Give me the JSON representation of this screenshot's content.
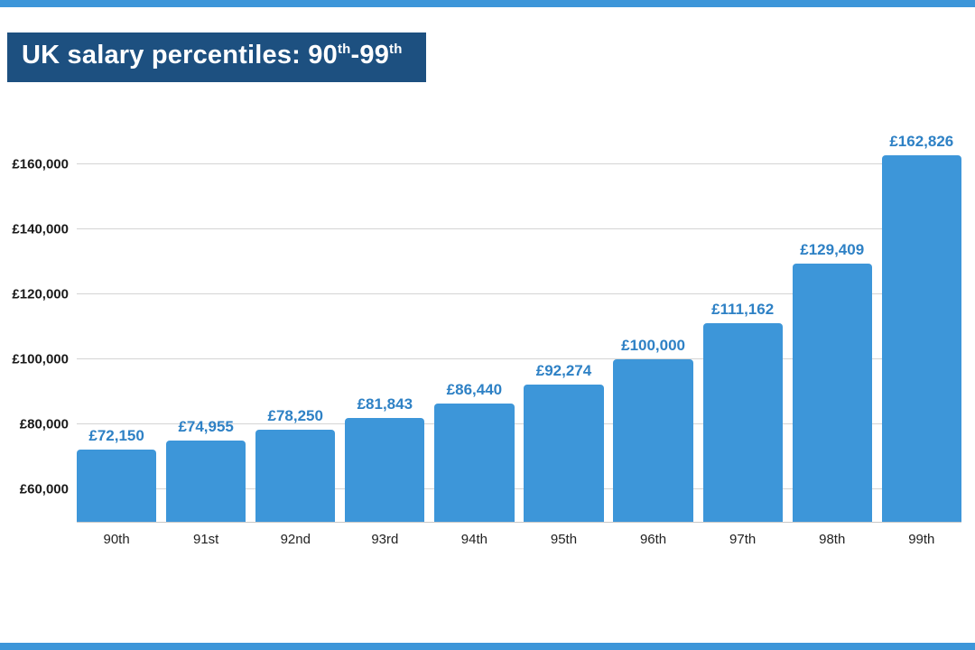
{
  "page": {
    "background": "#ffffff",
    "top_strip_color": "#3d96d9",
    "bottom_strip_color": "#3d96d9"
  },
  "title": {
    "text": "UK salary percentiles: 90th-99th",
    "prefix": "UK salary percentiles: 90",
    "sup1": "th",
    "mid": "-99",
    "sup2": "th",
    "background": "#1d5080",
    "color": "#ffffff"
  },
  "chart_data": {
    "type": "bar",
    "title": "UK salary percentiles: 90th-99th",
    "categories": [
      "90th",
      "91st",
      "92nd",
      "93rd",
      "94th",
      "95th",
      "96th",
      "97th",
      "98th",
      "99th"
    ],
    "values": [
      72150,
      74955,
      78250,
      81843,
      86440,
      92274,
      100000,
      111162,
      129409,
      162826
    ],
    "value_labels": [
      "£72,150",
      "£74,955",
      "£78,250",
      "£81,843",
      "£86,440",
      "£92,274",
      "£100,000",
      "£111,162",
      "£129,409",
      "£162,826"
    ],
    "xlabel": "",
    "ylabel": "",
    "ylim": [
      50000,
      170000
    ],
    "yticks": [
      60000,
      80000,
      100000,
      120000,
      140000,
      160000
    ],
    "ytick_labels": [
      "£60,000",
      "£80,000",
      "£100,000",
      "£120,000",
      "£140,000",
      "£160,000"
    ],
    "grid": true,
    "legend": false,
    "bar_color": "#3d96d9",
    "value_label_color": "#2e81c5",
    "tick_label_color": "#1a1a1a",
    "gridline_color": "#d4d4d4"
  }
}
